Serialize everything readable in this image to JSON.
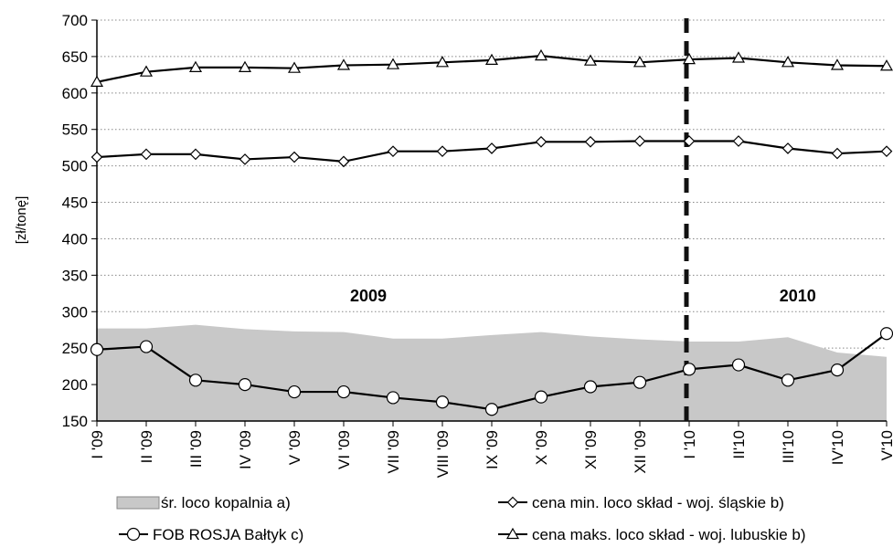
{
  "chart_data": {
    "type": "line",
    "ylabel": "[zł/tonę]",
    "ylim": [
      150,
      700
    ],
    "yticks": [
      150,
      200,
      250,
      300,
      350,
      400,
      450,
      500,
      550,
      600,
      650,
      700
    ],
    "grid": "horizontal dotted",
    "categories": [
      "I '09",
      "II '09",
      "III '09",
      "IV '09",
      "V '09",
      "VI '09",
      "VII '09",
      "VIII '09",
      "IX '09",
      "X '09",
      "XI '09",
      "XII '09",
      "I '10",
      "II'10",
      "III'10",
      "IV'10",
      "V'10"
    ],
    "series": [
      {
        "name": "śr. loco kopalnia a)",
        "style": "area",
        "color": "#c8c8c8",
        "values": [
          277,
          277,
          282,
          276,
          273,
          272,
          263,
          263,
          268,
          272,
          266,
          262,
          259,
          259,
          265,
          244,
          238
        ]
      },
      {
        "name": "FOB ROSJA Bałtyk c)",
        "style": "line",
        "marker": "circle",
        "values": [
          248,
          252,
          206,
          200,
          190,
          190,
          182,
          176,
          166,
          183,
          197,
          203,
          221,
          227,
          206,
          220,
          270
        ]
      },
      {
        "name": "cena min. loco skład - woj. śląskie b)",
        "style": "line",
        "marker": "diamond",
        "values": [
          512,
          516,
          516,
          509,
          512,
          506,
          520,
          520,
          524,
          533,
          533,
          534,
          534,
          534,
          524,
          517,
          520
        ]
      },
      {
        "name": "cena maks. loco skład - woj. lubuskie b)",
        "style": "line",
        "marker": "triangle",
        "values": [
          615,
          629,
          635,
          635,
          634,
          638,
          639,
          642,
          645,
          651,
          644,
          642,
          646,
          648,
          642,
          638,
          637
        ]
      }
    ],
    "annotations": [
      {
        "text": "2009",
        "x_category_index": 5.5,
        "y": 323
      },
      {
        "text": "2010",
        "x_category_index": 14.2,
        "y": 323
      }
    ],
    "divider": {
      "style": "dashed",
      "x_between": [
        "XII '09",
        "I '10"
      ]
    },
    "legend": {
      "placement": "bottom",
      "items": [
        {
          "label": "śr. loco kopalnia a)",
          "symbol": "area"
        },
        {
          "label": "cena min. loco skład - woj. śląskie b)",
          "symbol": "diamond"
        },
        {
          "label": "FOB ROSJA Bałtyk c)",
          "symbol": "circle"
        },
        {
          "label": "cena maks. loco skład - woj. lubuskie b)",
          "symbol": "triangle"
        }
      ]
    }
  }
}
